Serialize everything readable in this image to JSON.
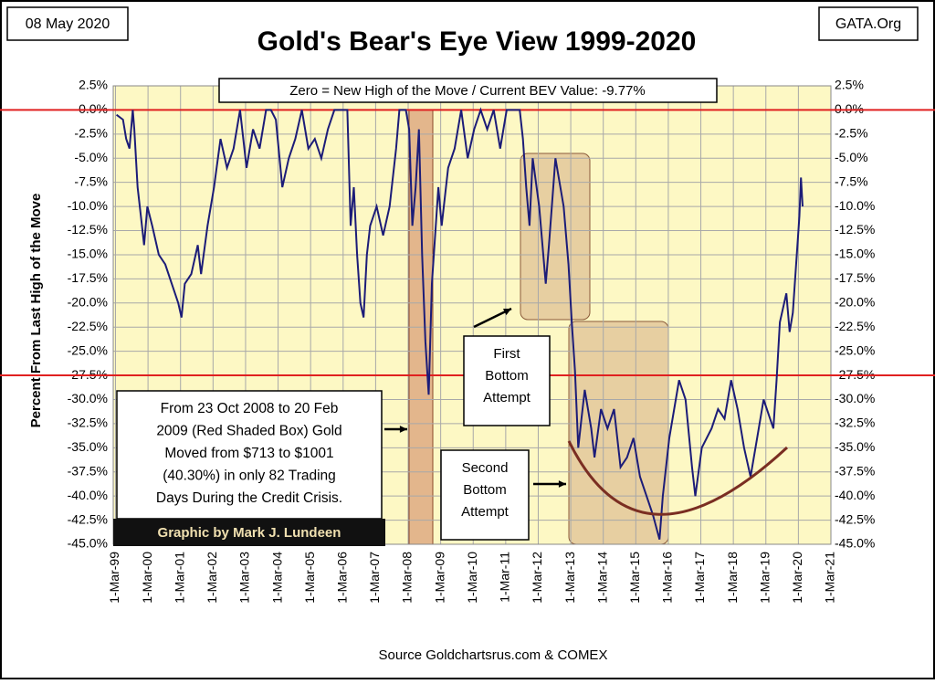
{
  "chart_data": {
    "type": "line",
    "date_label": "08 May 2020",
    "corner_label": "GATA.Org",
    "title": "Gold's Bear's Eye View 1999-2020",
    "subtitle": "Zero = New High of the Move / Current BEV Value:  -9.77%",
    "y_label": "Percent  From Last High of the Move",
    "source": "Source  Goldchartsrus.com & COMEX",
    "credit": "Graphic by Mark J. Lundeen",
    "annotations": [
      {
        "lines": [
          "From 23 Oct 2008 to 20 Feb",
          "2009 (Red Shaded Box)  Gold",
          "Moved from $713 to $1001",
          "(40.30%) in only 82 Trading",
          "Days During the Credit Crisis."
        ]
      },
      {
        "lines": [
          "First",
          "Bottom",
          "Attempt"
        ]
      },
      {
        "lines": [
          "Second",
          "Bottom",
          "Attempt"
        ]
      }
    ],
    "reference_lines": {
      "values": [
        0,
        -27.5
      ],
      "color": "#e02020"
    },
    "grid": true,
    "xlim": [
      1999.1,
      2021.17
    ],
    "ylim": [
      -45,
      2.5
    ],
    "xticks": [
      {
        "value": 1999.17,
        "label": "1-Mar-99"
      },
      {
        "value": 2000.17,
        "label": "1-Mar-00"
      },
      {
        "value": 2001.17,
        "label": "1-Mar-01"
      },
      {
        "value": 2002.17,
        "label": "1-Mar-02"
      },
      {
        "value": 2003.17,
        "label": "1-Mar-03"
      },
      {
        "value": 2004.17,
        "label": "1-Mar-04"
      },
      {
        "value": 2005.17,
        "label": "1-Mar-05"
      },
      {
        "value": 2006.17,
        "label": "1-Mar-06"
      },
      {
        "value": 2007.17,
        "label": "1-Mar-07"
      },
      {
        "value": 2008.17,
        "label": "1-Mar-08"
      },
      {
        "value": 2009.17,
        "label": "1-Mar-09"
      },
      {
        "value": 2010.17,
        "label": "1-Mar-10"
      },
      {
        "value": 2011.17,
        "label": "1-Mar-11"
      },
      {
        "value": 2012.17,
        "label": "1-Mar-12"
      },
      {
        "value": 2013.17,
        "label": "1-Mar-13"
      },
      {
        "value": 2014.17,
        "label": "1-Mar-14"
      },
      {
        "value": 2015.17,
        "label": "1-Mar-15"
      },
      {
        "value": 2016.17,
        "label": "1-Mar-16"
      },
      {
        "value": 2017.17,
        "label": "1-Mar-17"
      },
      {
        "value": 2018.17,
        "label": "1-Mar-18"
      },
      {
        "value": 2019.17,
        "label": "1-Mar-19"
      },
      {
        "value": 2020.17,
        "label": "1-Mar-20"
      },
      {
        "value": 2021.17,
        "label": "1-Mar-21"
      }
    ],
    "yticks": [
      {
        "value": 2.5,
        "label": "2.5%"
      },
      {
        "value": 0,
        "label": "0.0%"
      },
      {
        "value": -2.5,
        "label": "-2.5%"
      },
      {
        "value": -5,
        "label": "-5.0%"
      },
      {
        "value": -7.5,
        "label": "-7.5%"
      },
      {
        "value": -10,
        "label": "-10.0%"
      },
      {
        "value": -12.5,
        "label": "-12.5%"
      },
      {
        "value": -15,
        "label": "-15.0%"
      },
      {
        "value": -17.5,
        "label": "-17.5%"
      },
      {
        "value": -20,
        "label": "-20.0%"
      },
      {
        "value": -22.5,
        "label": "-22.5%"
      },
      {
        "value": -25,
        "label": "-25.0%"
      },
      {
        "value": -27.5,
        "label": "-27.5%"
      },
      {
        "value": -30,
        "label": "-30.0%"
      },
      {
        "value": -32.5,
        "label": "-32.5%"
      },
      {
        "value": -35,
        "label": "-35.0%"
      },
      {
        "value": -37.5,
        "label": "-37.5%"
      },
      {
        "value": -40,
        "label": "-40.0%"
      },
      {
        "value": -42.5,
        "label": "-42.5%"
      },
      {
        "value": -45,
        "label": "-45.0%"
      }
    ],
    "series": [
      {
        "color": "#1c1c78",
        "x": [
          1999.2,
          1999.4,
          1999.5,
          1999.6,
          1999.7,
          1999.75,
          1999.85,
          1999.95,
          2000.05,
          2000.15,
          2000.3,
          2000.5,
          2000.7,
          2000.9,
          2001.1,
          2001.2,
          2001.3,
          2001.5,
          2001.7,
          2001.8,
          2002.0,
          2002.2,
          2002.4,
          2002.6,
          2002.8,
          2003.0,
          2003.2,
          2003.4,
          2003.6,
          2003.8,
          2003.95,
          2004.1,
          2004.3,
          2004.5,
          2004.7,
          2004.9,
          2005.1,
          2005.3,
          2005.5,
          2005.7,
          2005.9,
          2006.1,
          2006.3,
          2006.4,
          2006.5,
          2006.6,
          2006.7,
          2006.8,
          2006.9,
          2007.0,
          2007.2,
          2007.4,
          2007.6,
          2007.8,
          2007.9,
          2008.1,
          2008.2,
          2008.3,
          2008.4,
          2008.5,
          2008.6,
          2008.7,
          2008.8,
          2008.9,
          2009.1,
          2009.2,
          2009.4,
          2009.6,
          2009.8,
          2010.0,
          2010.2,
          2010.4,
          2010.6,
          2010.8,
          2011.0,
          2011.2,
          2011.4,
          2011.6,
          2011.7,
          2011.8,
          2011.9,
          2012.0,
          2012.2,
          2012.4,
          2012.5,
          2012.7,
          2012.8,
          2012.95,
          2013.1,
          2013.2,
          2013.3,
          2013.4,
          2013.5,
          2013.6,
          2013.8,
          2013.9,
          2014.1,
          2014.3,
          2014.5,
          2014.7,
          2014.9,
          2015.1,
          2015.3,
          2015.5,
          2015.7,
          2015.9,
          2016.0,
          2016.2,
          2016.5,
          2016.7,
          2016.9,
          2017.0,
          2017.2,
          2017.5,
          2017.7,
          2017.9,
          2018.1,
          2018.3,
          2018.5,
          2018.7,
          2018.9,
          2019.1,
          2019.3,
          2019.4,
          2019.5,
          2019.6,
          2019.8,
          2019.9,
          2020.0,
          2020.1,
          2020.2,
          2020.25,
          2020.3
        ],
        "values": [
          -0.5,
          -1,
          -3,
          -4,
          0,
          -2,
          -8,
          -11,
          -14,
          -10,
          -12,
          -15,
          -16,
          -18,
          -20,
          -21.5,
          -18,
          -17,
          -14,
          -17,
          -12,
          -8,
          -3,
          -6,
          -4,
          0,
          -6,
          -2,
          -4,
          0,
          0,
          -1,
          -8,
          -5,
          -3,
          0,
          -4,
          -3,
          -5,
          -2,
          0,
          0,
          0,
          -12,
          -8,
          -15,
          -20,
          -21.5,
          -15,
          -12,
          -10,
          -13,
          -10,
          -4,
          0,
          0,
          -2,
          -12,
          -8,
          -2,
          -15,
          -24,
          -29.5,
          -18,
          -8,
          -12,
          -6,
          -4,
          0,
          -5,
          -2,
          0,
          -2,
          0,
          -4,
          0,
          0,
          0,
          -3,
          -8,
          -12,
          -5,
          -10,
          -18,
          -14,
          -5,
          -7,
          -10,
          -16,
          -22,
          -27,
          -35,
          -32,
          -29,
          -33,
          -36,
          -31,
          -33,
          -31,
          -37,
          -36,
          -34,
          -38,
          -40,
          -42,
          -44.5,
          -40,
          -34,
          -28,
          -30,
          -37,
          -40,
          -35,
          -33,
          -31,
          -32,
          -28,
          -31,
          -35,
          -38,
          -34,
          -30,
          -32,
          -33,
          -28,
          -22,
          -19,
          -23,
          -21,
          -16,
          -11,
          -7,
          -10
        ]
      }
    ]
  }
}
